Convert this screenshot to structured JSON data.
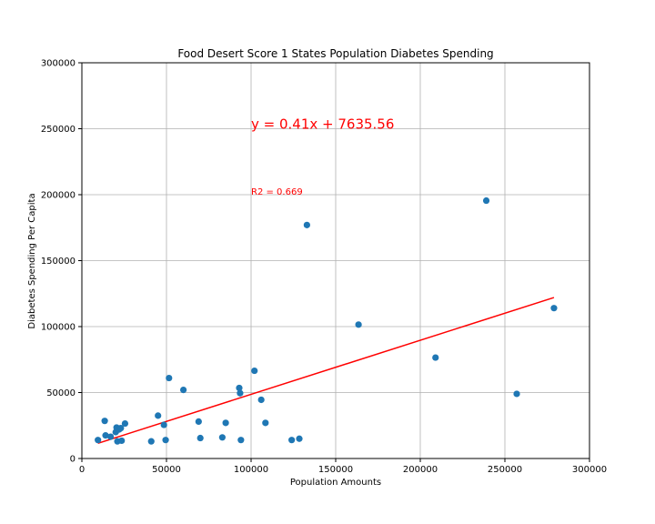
{
  "chart_data": {
    "type": "scatter",
    "title": "Food Desert Score 1 States Population Diabetes Spending",
    "xlabel": "Population Amounts",
    "ylabel": "Diabetes Spending Per Capita",
    "xlim": [
      0,
      300000
    ],
    "ylim": [
      0,
      300000
    ],
    "x_ticks": [
      0,
      50000,
      100000,
      150000,
      200000,
      250000,
      300000
    ],
    "y_ticks": [
      0,
      50000,
      100000,
      150000,
      200000,
      250000,
      300000
    ],
    "x_tick_labels": [
      "0",
      "50000",
      "100000",
      "150000",
      "200000",
      "250000",
      "300000"
    ],
    "y_tick_labels": [
      "0",
      "50000",
      "100000",
      "150000",
      "200000",
      "250000",
      "300000"
    ],
    "grid": true,
    "points": [
      {
        "x": 9500,
        "y": 14000
      },
      {
        "x": 13500,
        "y": 28500
      },
      {
        "x": 14000,
        "y": 17500
      },
      {
        "x": 17000,
        "y": 16500
      },
      {
        "x": 20000,
        "y": 20000
      },
      {
        "x": 20500,
        "y": 23500
      },
      {
        "x": 21000,
        "y": 13000
      },
      {
        "x": 22000,
        "y": 22000
      },
      {
        "x": 23000,
        "y": 23000
      },
      {
        "x": 23500,
        "y": 13500
      },
      {
        "x": 25500,
        "y": 26500
      },
      {
        "x": 41000,
        "y": 13000
      },
      {
        "x": 45000,
        "y": 32500
      },
      {
        "x": 48500,
        "y": 25500
      },
      {
        "x": 49500,
        "y": 14000
      },
      {
        "x": 51500,
        "y": 61000
      },
      {
        "x": 60000,
        "y": 52000
      },
      {
        "x": 69000,
        "y": 28000
      },
      {
        "x": 70000,
        "y": 15500
      },
      {
        "x": 83000,
        "y": 16000
      },
      {
        "x": 85000,
        "y": 27000
      },
      {
        "x": 93000,
        "y": 53500
      },
      {
        "x": 93500,
        "y": 49500
      },
      {
        "x": 94000,
        "y": 14000
      },
      {
        "x": 102000,
        "y": 66500
      },
      {
        "x": 106000,
        "y": 44500
      },
      {
        "x": 108500,
        "y": 27000
      },
      {
        "x": 124000,
        "y": 14000
      },
      {
        "x": 128500,
        "y": 15000
      },
      {
        "x": 133000,
        "y": 177000
      },
      {
        "x": 163500,
        "y": 101500
      },
      {
        "x": 209000,
        "y": 76500
      },
      {
        "x": 239000,
        "y": 195500
      },
      {
        "x": 257000,
        "y": 49000
      },
      {
        "x": 279000,
        "y": 114000
      }
    ],
    "regression": {
      "slope": 0.41,
      "intercept": 7635.56,
      "x_start": 9500,
      "x_end": 279000,
      "equation_text": "y = 0.41x + 7635.56",
      "r2_text": "R2 = 0.669",
      "equation_anchor": {
        "x": 100000,
        "y": 250000
      },
      "r2_anchor": {
        "x": 100000,
        "y": 200000
      }
    },
    "colors": {
      "points": "#1f77b4",
      "line": "#ff0000",
      "annotation": "#ff0000",
      "grid": "#b0b0b0"
    }
  }
}
